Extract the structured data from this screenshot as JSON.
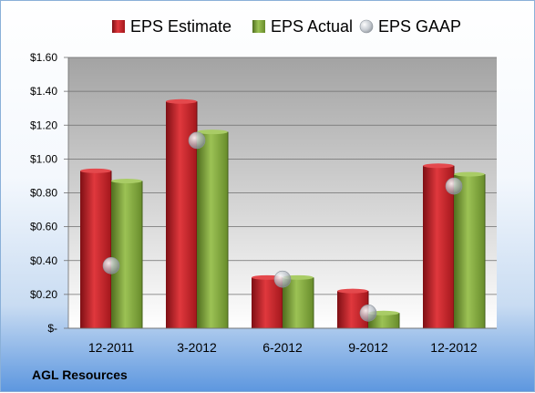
{
  "company": "AGL Resources",
  "colors": {
    "estimate": "#c8232a",
    "actual": "#7da43a",
    "gaap": "#b9bfc7"
  },
  "chart_data": {
    "type": "bar",
    "title": "",
    "xlabel": "",
    "ylabel": "",
    "categories": [
      "12-2011",
      "3-2012",
      "6-2012",
      "9-2012",
      "12-2012"
    ],
    "series": [
      {
        "name": "EPS Estimate",
        "type": "bar",
        "values": [
          0.93,
          1.34,
          0.3,
          0.22,
          0.96
        ]
      },
      {
        "name": "EPS Actual",
        "type": "bar",
        "values": [
          0.87,
          1.16,
          0.3,
          0.09,
          0.91
        ]
      },
      {
        "name": "EPS GAAP",
        "type": "marker",
        "values": [
          0.37,
          1.11,
          0.29,
          0.09,
          0.84
        ]
      }
    ],
    "ylim": [
      0,
      1.6
    ],
    "yticks": [
      0,
      0.2,
      0.4,
      0.6,
      0.8,
      1.0,
      1.2,
      1.4,
      1.6
    ],
    "ytick_labels": [
      "$-",
      "$0.20",
      "$0.40",
      "$0.60",
      "$0.80",
      "$1.00",
      "$1.20",
      "$1.40",
      "$1.60"
    ],
    "grid": true,
    "legend_position": "top"
  }
}
